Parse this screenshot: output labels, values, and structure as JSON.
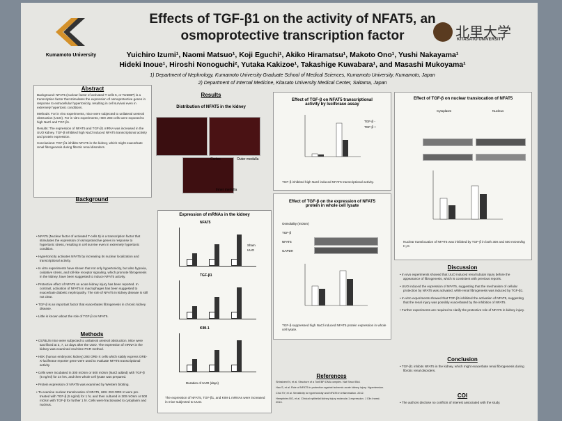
{
  "header": {
    "title": [
      "Effects of TGF-β1 on the activity of NFAT5, an",
      "osmoprotective transcription factor"
    ],
    "authors": [
      "Yuichiro Izumi¹, Naomi Matsuo¹, Koji Eguchi¹, Akiko Hiramatsu¹, Makoto Ono¹, Yushi Nakayama¹",
      "Hideki Inoue¹, Hiroshi Nonoguchi², Yutaka Kakizoe¹, Takashige Kuwabara¹, and Masashi Mukoyama¹"
    ],
    "affiliations": [
      "1)  Department of Nephrology, Kumamoto University Graduate School of Medical Sciences, Kumamoto University, Kumamoto, Japan",
      "2)  Department of Internal Medicine, Kitasato University Medical Center, Saitama, Japan"
    ],
    "left_logo": "Kumamoto University",
    "right_logo": [
      "北里大学",
      "KITASATO UNIVERSITY"
    ]
  },
  "abstract": {
    "heading": "Abstract",
    "paragraphs": [
      "Background: NFAT5 (nuclear factor of activated T-cells 5, or TonEBP) is a transcription factor that stimulates the expression of osmoprotective genes in response to extracellular hypertonicity, resulting in cell survival even in extremely hypertonic conditions.",
      "Methods: For in vivo experiments, mice were subjected to unilateral ureteral obstruction (UUO). For in vitro experiments, HEK 293 cells were exposed to high NaCl and TGF-β1.",
      "Results: The expression of NFAT5 and TGF-β1 mRNA was increased in the UUO kidney. TGF-β inhibited high NaCl induced NFAT5 transcriptional activity and protein expression.",
      "Conclusions: TGF-β1 inhibits NFAT5 in the kidney, which might exacerbate renal fibrogenesis during fibrotic renal disorders."
    ]
  },
  "background": {
    "heading": "Background",
    "items": [
      "NFAT5 (Nuclear factor of activated T-cells 5) is a transcription factor that stimulates the expression of osmoprotective genes in response to hypertonic stress, resulting in cell survive even in extremely hypertonic condition.",
      "Hypertonicity activates NFAT5 by increasing its nuclear localization and transcriptional activity.",
      "In vitro experiments have shown that not only hypertonicity, but also hypoxia, oxidative stress, and toll-like receptor signaling, which promote fibrogenesis in the kidney, have been suggested to induce NFAT5 activity.",
      "Protective effect of NFAT5 on acute kidney injury has been reported. In contrast, activation of NFAT5 in macrophages has been suggested to exacerbate diabetic nephropathy. The role of NFAT5 in kidney disease is still not clear.",
      "TGF-β is an important factor that exacerbates fibrogenesis in chronic kidney disease.",
      "Little is known about the role of TGF-β on NFAT5."
    ]
  },
  "methods": {
    "heading": "Methods",
    "items": [
      "C57BL/6 mice were subjected to unilateral ureteral obstruction. Mice were sacrificed at 3, 7, 14 days after the UUO. The expression of mRNA in the kidney was examined real-time PCR method.",
      "HEK (human embryonic kidney) 293 ORE-X cells which stably express ORE-X-luciferase reporter gene were used to evaluate NFAT5 transcriptional activity.",
      "Cells were incubated in 300 mOsm or 500 mOsm (NaCl added) with TGF-β (5 ng/ml) for 24 hrs, and then whole cell lysate was prepared.",
      "Protein expression of NFAT5 was examined by Western blotting.",
      "To examine nuclear translocation of NFAT5, HEK 293 ORE-X were pre-treated with TGF-β (5 ng/ml) for 1 hr, and then cultured in 300 mOsm or 500 mOsm with TGF-β for further 1 hr. Cells were fractionated to cytoplasm and nucleus."
    ]
  },
  "results": {
    "heading": "Results",
    "distribution": {
      "title": "Distribution of NFAT5 in the kidney",
      "labels": [
        "Cortex",
        "Outer medulla",
        "Inner medulla"
      ]
    },
    "mrna": {
      "title": "Expression of mRNAs in the kidney",
      "panels": [
        "NFAT5",
        "TGF-β1",
        "KIM-1"
      ],
      "legend": [
        "Sham",
        "UUO"
      ],
      "xlabel": "Duration of UUO (days)",
      "caption": "The expression of NFAT5, TGF-β1, and KIM-1 mRNAs were increased in mice subjected to UUO."
    },
    "luciferase": {
      "title": "Effect of TGF-β on NFAT5 transcriptional activity by luciferase assay",
      "legend": [
        "TGF-β -",
        "TGF-β +"
      ],
      "caption": "TGF-β inhibited high NaCl induced NFAT5 transcriptional activity."
    },
    "protein": {
      "title": "Effect of TGF-β on the expression of NFAT5  protein in whole cell lysate",
      "rows": [
        "Osmolality (mOsm)",
        "TGF-β",
        "NFAT5",
        "GAPDH"
      ],
      "caption": "TGF-β suppressed high NaCl induced NFAT5 protein expression in whole cell lysate."
    },
    "nuclear": {
      "title": "Effect of TGF-β on nuclear translocation of NFAT5",
      "fractions": [
        "Cytoplasm",
        "Nucleus"
      ],
      "caption": "Nuclear translocation of NFAT5 was inhibited by TGF-β in both 300 and 500 mOsm/kg H₂O."
    }
  },
  "discussion": {
    "heading": "Discussion",
    "items": [
      "In vivo experiments showed that UUO induced renal tubular injury before the appearance of fibrogenesis, which is consistent with previous reports.",
      "UUO induced the expression of NFAT5, suggesting that the mechanism of cellular protection by NFAT5 was activated, while renal fibrogenesis was induced by TGF-β1.",
      "In vitro experiments showed that TGF-β1 inhibited the activation of NFAT5, suggesting that the renal injury was possibly exacerbated by the inhibition of NFAT5.",
      "Further experiments are required to clarify the protective role of NFAT5 in kidney injury."
    ]
  },
  "conclusion": {
    "heading": "Conclusion",
    "items": [
      "TGF-β1 inhibits NFAT5 in the kidney, which might exacerbate renal fibrogenesis during fibrotic renal disorders."
    ]
  },
  "references": {
    "heading": "References",
    "items": [
      "Shtraizent N, et al. Structure of a TonEBP-DNA complex. Nat Struct Biol.",
      "Hao S, et al. Role of NFAT5 in protection against ischemic acute kidney injury. Hypertension.",
      "Choi SY, et al. Sensitivity to hypertonicity and NFAT5 in inflammation. 2012.",
      "Hemphries BG, et al. Clinical epithelial kidney injury molecule-1 expression. J Clin Invest. 2013."
    ]
  },
  "coi": {
    "heading": "COI",
    "items": [
      "The authors disclose no conflicts of interest associated with the study."
    ]
  }
}
